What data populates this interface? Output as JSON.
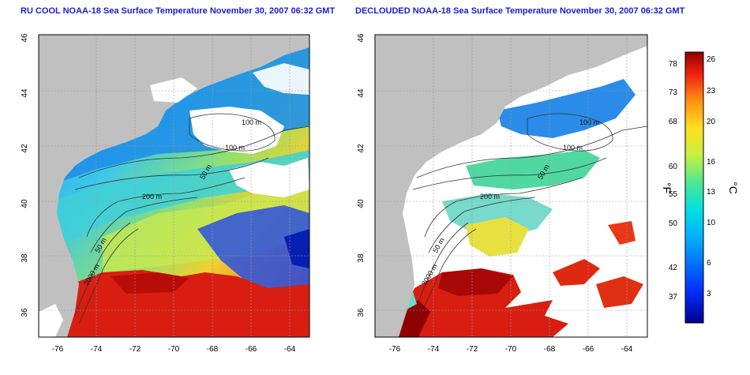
{
  "panels": [
    {
      "title": "RU COOL NOAA-18 Sea Surface Temperature November 30, 2007 06:32 GMT",
      "x_ticks": [
        "-76",
        "-74",
        "-72",
        "-70",
        "-68",
        "-66",
        "-64"
      ],
      "y_ticks": [
        "46",
        "44",
        "42",
        "40",
        "38",
        "36"
      ],
      "contour_labels": [
        "100 m",
        "100 m",
        "50 m",
        "200 m",
        "50 m",
        "2000 m"
      ]
    },
    {
      "title": "DECLOUDED NOAA-18 Sea Surface Temperature November 30, 2007 06:32 GMT",
      "x_ticks": [
        "-76",
        "-74",
        "-72",
        "-70",
        "-68",
        "-66",
        "-64"
      ],
      "y_ticks": [
        "46",
        "44",
        "42",
        "40",
        "38",
        "36"
      ],
      "contour_labels": [
        "100 m",
        "100 m",
        "50 m",
        "200 m",
        "50 m",
        "2000 m"
      ]
    }
  ],
  "colorbar": {
    "fahrenheit_label": "°F",
    "celsius_label": "°C",
    "fahrenheit_ticks": [
      "78",
      "73",
      "68",
      "60",
      "55",
      "50",
      "42",
      "37"
    ],
    "celsius_ticks": [
      "26",
      "23",
      "20",
      "16",
      "13",
      "10",
      "6",
      "3"
    ]
  },
  "colors": {
    "land": "#c0c0c0",
    "cloud": "#ffffff",
    "warm": "#d41e0f",
    "cold": "#1b3fd6",
    "title": "#1b1bd0"
  }
}
